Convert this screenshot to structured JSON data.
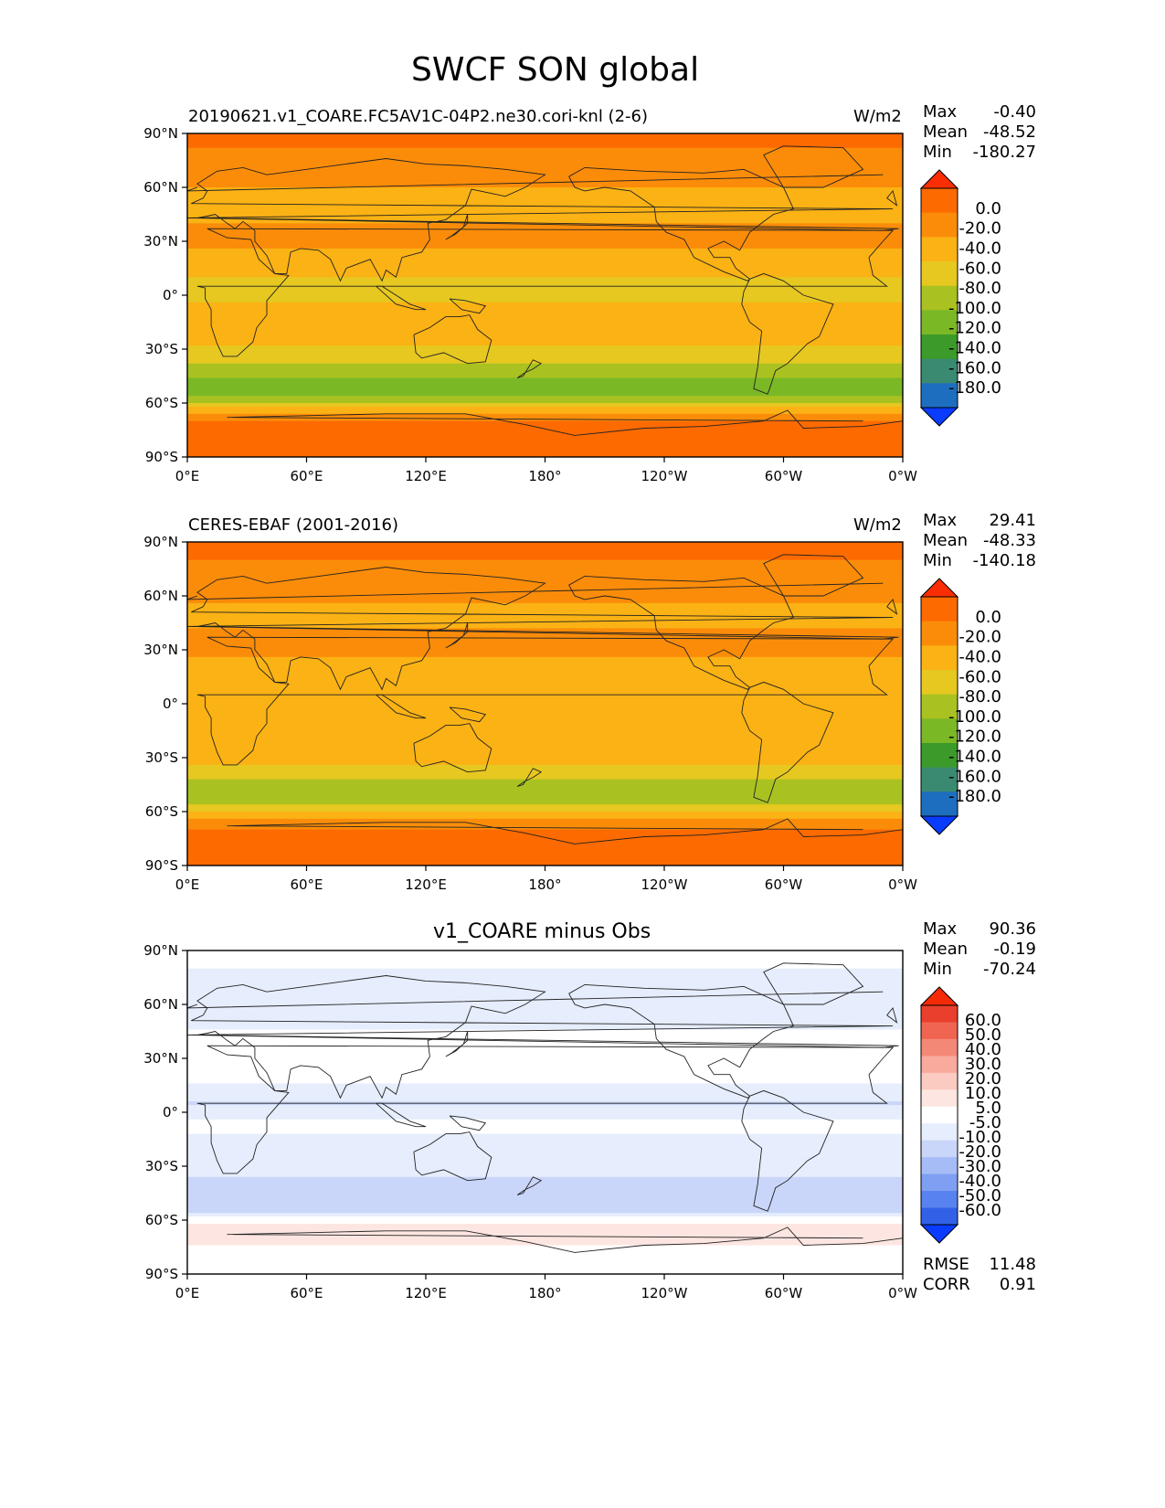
{
  "figure": {
    "title": "SWCF SON global"
  },
  "colors": {
    "abs_levels": [
      "#0a3cff",
      "#1e6ebf",
      "#3a8a72",
      "#3c9a2b",
      "#7ab826",
      "#a9c221",
      "#e6c821",
      "#fbb214",
      "#fb8c09",
      "#fd6a00",
      "#fa2d04"
    ],
    "diff_levels": [
      "#0a3cff",
      "#3261e8",
      "#5882ef",
      "#7e9ff2",
      "#a6bcf6",
      "#c9d6f9",
      "#e6edfc",
      "#ffffff",
      "#fde6e2",
      "#fbcbc2",
      "#f8aa9d",
      "#f48877",
      "#ef6551",
      "#ea3f2c",
      "#f52b08"
    ]
  },
  "chart_data": [
    {
      "type": "heatmap",
      "panel": "model",
      "title": "20190621.v1_COARE.FC5AV1C-04P2.ne30.cori-knl (2-6)",
      "units": "W/m2",
      "stats": {
        "max_label": "Max",
        "max": "-0.40",
        "mean_label": "Mean",
        "mean": "-48.52",
        "min_label": "Min",
        "min": "-180.27"
      },
      "x_ticks": [
        "0°E",
        "60°E",
        "120°E",
        "180°",
        "120°W",
        "60°W",
        "0°W"
      ],
      "y_ticks": [
        "90°N",
        "60°N",
        "30°N",
        "0°",
        "30°S",
        "60°S",
        "90°S"
      ],
      "xlim": [
        0,
        360
      ],
      "ylim": [
        -90,
        90
      ],
      "colorbar_labels": [
        "0.0",
        "-20.0",
        "-40.0",
        "-60.0",
        "-80.0",
        "-100.0",
        "-120.0",
        "-140.0",
        "-160.0",
        "-180.0"
      ],
      "colorbar_levels": [
        0,
        -20,
        -40,
        -60,
        -80,
        -100,
        -120,
        -140,
        -160,
        -180
      ],
      "zonal_mean_profile": {
        "lat": [
          90,
          75,
          60,
          50,
          42,
          35,
          25,
          15,
          5,
          0,
          -5,
          -15,
          -25,
          -35,
          -42,
          -50,
          -56,
          -62,
          -70,
          -80,
          -90
        ],
        "value": [
          -15,
          -25,
          -40,
          -50,
          -45,
          -30,
          -40,
          -55,
          -65,
          -70,
          -58,
          -52,
          -55,
          -70,
          -95,
          -105,
          -100,
          -60,
          -20,
          -15,
          -15
        ]
      }
    },
    {
      "type": "heatmap",
      "panel": "obs",
      "title": "CERES-EBAF (2001-2016)",
      "units": "W/m2",
      "stats": {
        "max_label": "Max",
        "max": "29.41",
        "mean_label": "Mean",
        "mean": "-48.33",
        "min_label": "Min",
        "min": "-140.18"
      },
      "x_ticks": [
        "0°E",
        "60°E",
        "120°E",
        "180°",
        "120°W",
        "60°W",
        "0°W"
      ],
      "y_ticks": [
        "90°N",
        "60°N",
        "30°N",
        "0°",
        "30°S",
        "60°S",
        "90°S"
      ],
      "xlim": [
        0,
        360
      ],
      "ylim": [
        -90,
        90
      ],
      "colorbar_labels": [
        "0.0",
        "-20.0",
        "-40.0",
        "-60.0",
        "-80.0",
        "-100.0",
        "-120.0",
        "-140.0",
        "-160.0",
        "-180.0"
      ],
      "colorbar_levels": [
        0,
        -20,
        -40,
        -60,
        -80,
        -100,
        -120,
        -140,
        -160,
        -180
      ],
      "zonal_mean_profile": {
        "lat": [
          90,
          75,
          60,
          50,
          42,
          35,
          25,
          15,
          5,
          0,
          -5,
          -15,
          -25,
          -35,
          -42,
          -50,
          -56,
          -62,
          -70,
          -80,
          -90
        ],
        "value": [
          -15,
          -22,
          -35,
          -45,
          -40,
          -30,
          -40,
          -50,
          -55,
          -60,
          -55,
          -48,
          -50,
          -62,
          -80,
          -90,
          -85,
          -50,
          -20,
          -10,
          -10
        ]
      }
    },
    {
      "type": "heatmap",
      "panel": "diff",
      "title": "v1_COARE minus Obs",
      "stats": {
        "max_label": "Max",
        "max": "90.36",
        "mean_label": "Mean",
        "mean": "-0.19",
        "min_label": "Min",
        "min": "-70.24"
      },
      "rmse_label": "RMSE",
      "rmse": "11.48",
      "corr_label": "CORR",
      "corr": "0.91",
      "x_ticks": [
        "0°E",
        "60°E",
        "120°E",
        "180°",
        "120°W",
        "60°W",
        "0°W"
      ],
      "y_ticks": [
        "90°N",
        "60°N",
        "30°N",
        "0°",
        "30°S",
        "60°S",
        "90°S"
      ],
      "xlim": [
        0,
        360
      ],
      "ylim": [
        -90,
        90
      ],
      "colorbar_labels": [
        "60.0",
        "50.0",
        "40.0",
        "30.0",
        "20.0",
        "10.0",
        "5.0",
        "-5.0",
        "-10.0",
        "-20.0",
        "-30.0",
        "-40.0",
        "-50.0",
        "-60.0"
      ],
      "colorbar_levels": [
        60,
        50,
        40,
        30,
        20,
        10,
        5,
        -5,
        -10,
        -20,
        -30,
        -40,
        -50,
        -60
      ],
      "zonal_mean_profile": {
        "lat": [
          90,
          75,
          60,
          50,
          42,
          35,
          25,
          15,
          5,
          0,
          -5,
          -15,
          -25,
          -35,
          -42,
          -50,
          -56,
          -62,
          -70,
          -80,
          -90
        ],
        "value": [
          0,
          -8,
          -10,
          -6,
          -4,
          0,
          0,
          -5,
          -10,
          -8,
          -3,
          -6,
          -5,
          -8,
          -15,
          -14,
          -10,
          8,
          10,
          0,
          0
        ]
      }
    }
  ]
}
